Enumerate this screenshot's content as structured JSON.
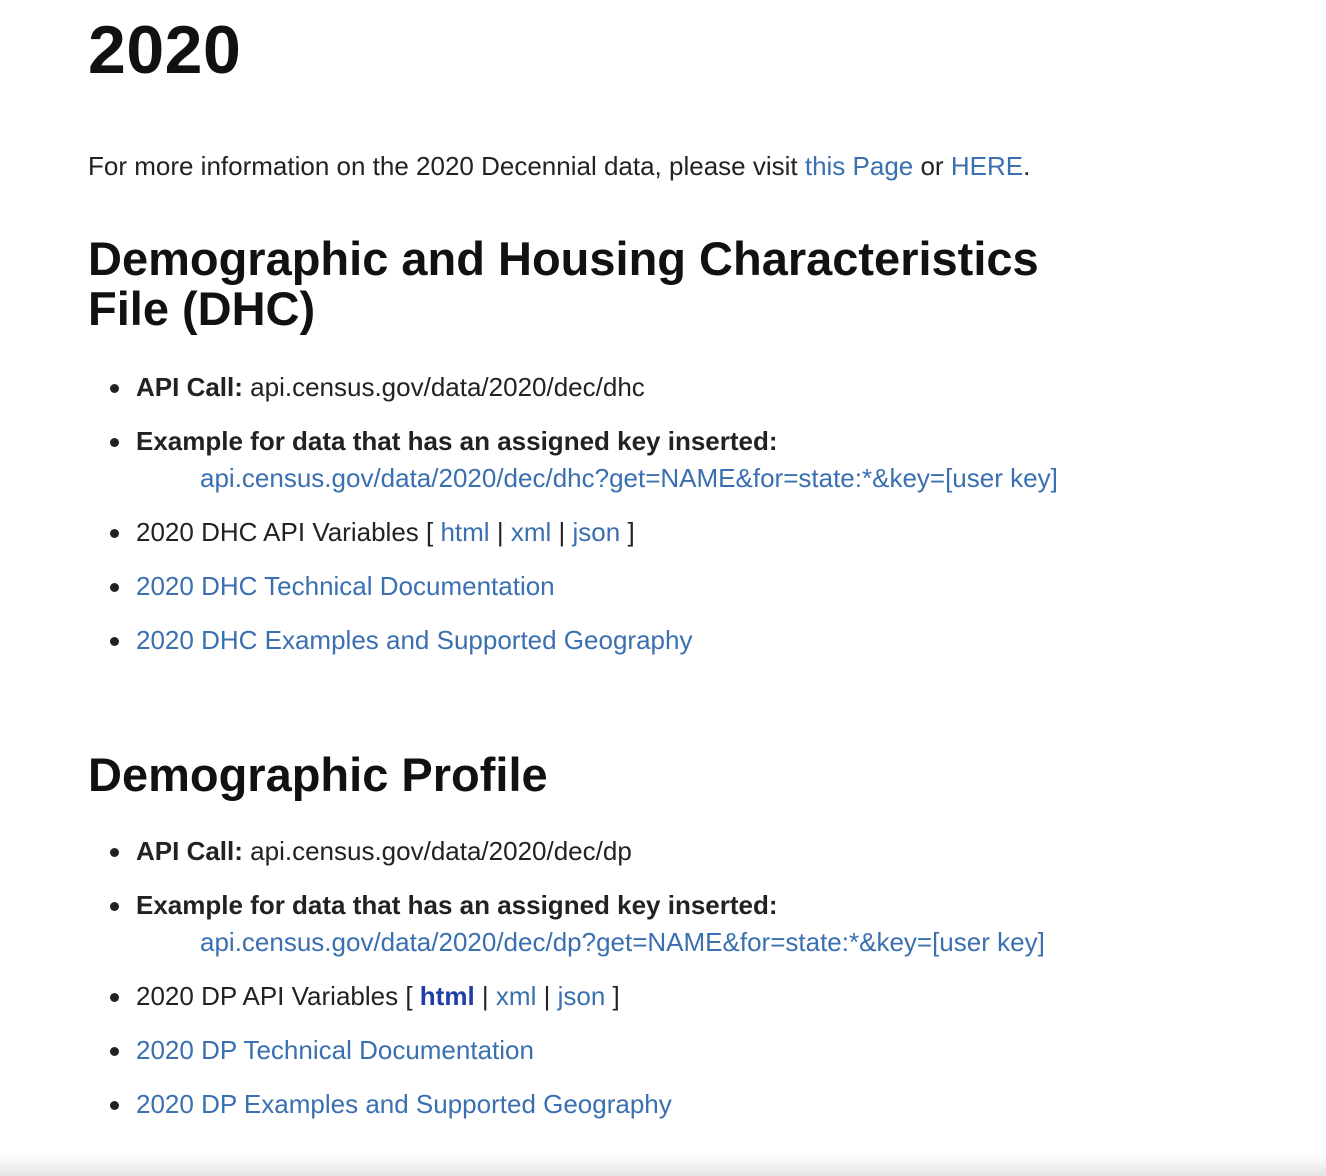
{
  "page": {
    "year_heading": "2020",
    "intro": {
      "before": "For more information on the 2020 Decennial data, please visit ",
      "link1": "this Page",
      "middle": " or ",
      "link2": "HERE",
      "after": "."
    }
  },
  "dhc": {
    "title": "Demographic and Housing Characteristics File (DHC)",
    "api_call_label": "API Call:",
    "api_call_value": "api.census.gov/data/2020/dec/dhc",
    "example_label": "Example for data that has an assigned key inserted:",
    "example_link": "api.census.gov/data/2020/dec/dhc?get=NAME&for=state:*&key=[user key]",
    "variables_label": "2020 DHC API Variables [",
    "variables_html": "html",
    "variables_xml": "xml",
    "variables_json": "json",
    "sep": "|",
    "close": "]",
    "tech_doc": "2020 DHC Technical Documentation",
    "examples_geo": "2020 DHC Examples and Supported Geography"
  },
  "dp": {
    "title": "Demographic Profile",
    "api_call_label": "API Call:",
    "api_call_value": "api.census.gov/data/2020/dec/dp",
    "example_label": "Example for data that has an assigned key inserted:",
    "example_link": "api.census.gov/data/2020/dec/dp?get=NAME&for=state:*&key=[user key]",
    "variables_label": "2020 DP API Variables [",
    "variables_html": "html",
    "variables_xml": "xml",
    "variables_json": "json",
    "sep": "|",
    "close": "]",
    "tech_doc": "2020 DP Technical Documentation",
    "examples_geo": "2020 DP Examples and Supported Geography"
  },
  "colors": {
    "link": "#3a6fb0",
    "link_visited": "#1f3fa8",
    "text": "#222222",
    "heading": "#111111"
  }
}
